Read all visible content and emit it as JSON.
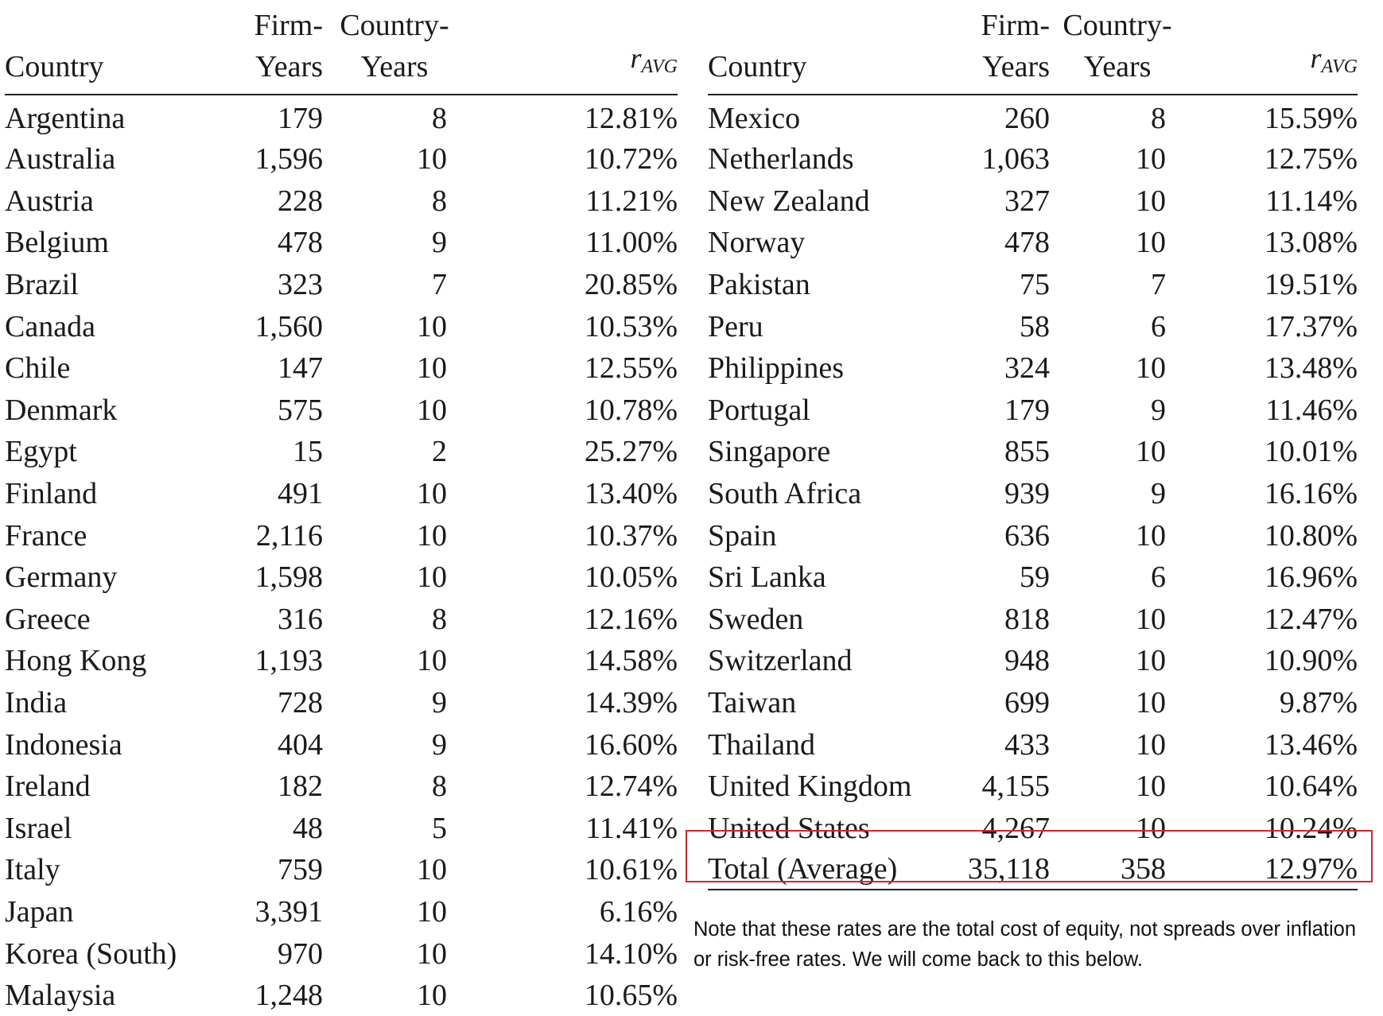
{
  "headers": {
    "country": "Country",
    "firm_years_line1": "Firm-",
    "firm_years_line2": "Years",
    "country_years_line1": "Country-",
    "country_years_line2": "Years",
    "r_avg_base": "r",
    "r_avg_sub": "AVG"
  },
  "left_rows": [
    {
      "country": "Argentina",
      "firm_years": "179",
      "country_years": "8",
      "r_avg": "12.81%"
    },
    {
      "country": "Australia",
      "firm_years": "1,596",
      "country_years": "10",
      "r_avg": "10.72%"
    },
    {
      "country": "Austria",
      "firm_years": "228",
      "country_years": "8",
      "r_avg": "11.21%"
    },
    {
      "country": "Belgium",
      "firm_years": "478",
      "country_years": "9",
      "r_avg": "11.00%"
    },
    {
      "country": "Brazil",
      "firm_years": "323",
      "country_years": "7",
      "r_avg": "20.85%"
    },
    {
      "country": "Canada",
      "firm_years": "1,560",
      "country_years": "10",
      "r_avg": "10.53%"
    },
    {
      "country": "Chile",
      "firm_years": "147",
      "country_years": "10",
      "r_avg": "12.55%"
    },
    {
      "country": "Denmark",
      "firm_years": "575",
      "country_years": "10",
      "r_avg": "10.78%"
    },
    {
      "country": "Egypt",
      "firm_years": "15",
      "country_years": "2",
      "r_avg": "25.27%"
    },
    {
      "country": "Finland",
      "firm_years": "491",
      "country_years": "10",
      "r_avg": "13.40%"
    },
    {
      "country": "France",
      "firm_years": "2,116",
      "country_years": "10",
      "r_avg": "10.37%"
    },
    {
      "country": "Germany",
      "firm_years": "1,598",
      "country_years": "10",
      "r_avg": "10.05%"
    },
    {
      "country": "Greece",
      "firm_years": "316",
      "country_years": "8",
      "r_avg": "12.16%"
    },
    {
      "country": "Hong Kong",
      "firm_years": "1,193",
      "country_years": "10",
      "r_avg": "14.58%"
    },
    {
      "country": "India",
      "firm_years": "728",
      "country_years": "9",
      "r_avg": "14.39%"
    },
    {
      "country": "Indonesia",
      "firm_years": "404",
      "country_years": "9",
      "r_avg": "16.60%"
    },
    {
      "country": "Ireland",
      "firm_years": "182",
      "country_years": "8",
      "r_avg": "12.74%"
    },
    {
      "country": "Israel",
      "firm_years": "48",
      "country_years": "5",
      "r_avg": "11.41%"
    },
    {
      "country": "Italy",
      "firm_years": "759",
      "country_years": "10",
      "r_avg": "10.61%"
    },
    {
      "country": "Japan",
      "firm_years": "3,391",
      "country_years": "10",
      "r_avg": "6.16%"
    },
    {
      "country": "Korea (South)",
      "firm_years": "970",
      "country_years": "10",
      "r_avg": "14.10%"
    },
    {
      "country": "Malaysia",
      "firm_years": "1,248",
      "country_years": "10",
      "r_avg": "10.65%"
    }
  ],
  "right_rows": [
    {
      "country": "Mexico",
      "firm_years": "260",
      "country_years": "8",
      "r_avg": "15.59%"
    },
    {
      "country": "Netherlands",
      "firm_years": "1,063",
      "country_years": "10",
      "r_avg": "12.75%"
    },
    {
      "country": "New Zealand",
      "firm_years": "327",
      "country_years": "10",
      "r_avg": "11.14%"
    },
    {
      "country": "Norway",
      "firm_years": "478",
      "country_years": "10",
      "r_avg": "13.08%"
    },
    {
      "country": "Pakistan",
      "firm_years": "75",
      "country_years": "7",
      "r_avg": "19.51%"
    },
    {
      "country": "Peru",
      "firm_years": "58",
      "country_years": "6",
      "r_avg": "17.37%"
    },
    {
      "country": "Philippines",
      "firm_years": "324",
      "country_years": "10",
      "r_avg": "13.48%"
    },
    {
      "country": "Portugal",
      "firm_years": "179",
      "country_years": "9",
      "r_avg": "11.46%"
    },
    {
      "country": "Singapore",
      "firm_years": "855",
      "country_years": "10",
      "r_avg": "10.01%"
    },
    {
      "country": "South Africa",
      "firm_years": "939",
      "country_years": "9",
      "r_avg": "16.16%"
    },
    {
      "country": "Spain",
      "firm_years": "636",
      "country_years": "10",
      "r_avg": "10.80%"
    },
    {
      "country": "Sri Lanka",
      "firm_years": "59",
      "country_years": "6",
      "r_avg": "16.96%"
    },
    {
      "country": "Sweden",
      "firm_years": "818",
      "country_years": "10",
      "r_avg": "12.47%"
    },
    {
      "country": "Switzerland",
      "firm_years": "948",
      "country_years": "10",
      "r_avg": "10.90%"
    },
    {
      "country": "Taiwan",
      "firm_years": "699",
      "country_years": "10",
      "r_avg": "9.87%"
    },
    {
      "country": "Thailand",
      "firm_years": "433",
      "country_years": "10",
      "r_avg": "13.46%"
    },
    {
      "country": "United Kingdom",
      "firm_years": "4,155",
      "country_years": "10",
      "r_avg": "10.64%"
    },
    {
      "country": "United States",
      "firm_years": "4,267",
      "country_years": "10",
      "r_avg": "10.24%"
    }
  ],
  "total": {
    "country": "Total (Average)",
    "firm_years": "35,118",
    "country_years": "358",
    "r_avg": "12.97%"
  },
  "note": "Note that these rates are the total cost of equity, not spreads over inflation or risk-free rates. We will come back to this below.",
  "colors": {
    "highlight_border": "#d8242b",
    "text": "#1a1a1a"
  }
}
